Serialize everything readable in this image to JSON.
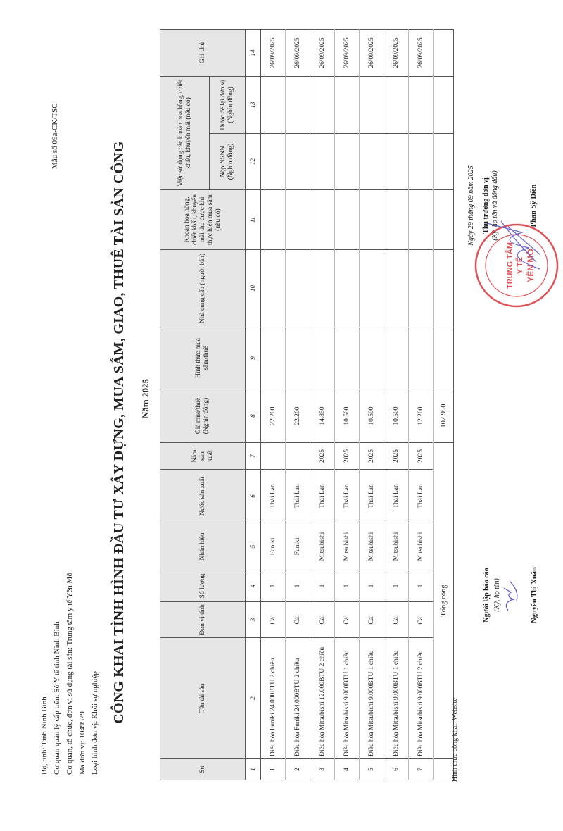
{
  "header": {
    "form_no": "Mẫu số 09a-CK/TSC",
    "info_lines": [
      "Bộ, tỉnh: Tỉnh Ninh Bình",
      "Cơ quan quản lý cấp trên: Sở Y tế tỉnh Ninh Bình",
      "Cơ quan, tổ chức, đơn vị sử dụng tài sản: Trung tâm y tế Yên Mô",
      "Mã đơn vị: 1049529",
      "Loại hình đơn vị: Khối sự nghiệp"
    ],
    "title": "CÔNG KHAI TÌNH HÌNH ĐẦU TƯ XÂY DỰNG, MUA SẮM, GIAO, THUÊ TÀI SẢN CÔNG",
    "year": "Năm 2025"
  },
  "table": {
    "headers": {
      "stt": "Stt",
      "name": "Tên tài sản",
      "unit": "Đơn vị tính",
      "qty": "Số lượng",
      "brand": "Nhãn hiệu",
      "country": "Nước sản xuất",
      "year": "Năm sản xuất",
      "price": "Giá mua/thuê (Nghìn đồng)",
      "method": "Hình thức mua sắm/thuê",
      "supplier": "Nhà cung cấp (người bán)",
      "commission": "Khoản hoa hồng, chiết khấu, khuyến mãi thu được khi thực hiện mua sắm (nếu có)",
      "usage": "Việc sử dụng các khoản hoa hồng, chiết khấu, khuyến mãi (nếu có)",
      "usage_budget": "Nộp NSNN (Nghìn đồng)",
      "usage_kept": "Được để lại đơn vị (Nghìn đồng)",
      "note": "Ghi chú"
    },
    "column_numbers": [
      "1",
      "2",
      "3",
      "4",
      "5",
      "6",
      "7",
      "8",
      "9",
      "10",
      "11",
      "12",
      "13",
      "14"
    ],
    "rows": [
      {
        "stt": "1",
        "name": "Điều hòa Funiki 24.000BTU 2 chiều",
        "unit": "Cái",
        "qty": "1",
        "brand": "Funiki",
        "country": "Thái Lan",
        "year": "",
        "price": "22.200",
        "method": "",
        "supplier": "",
        "commission": "",
        "budget": "",
        "kept": "",
        "note": "26/09/2025"
      },
      {
        "stt": "2",
        "name": "Điều hòa Funiki 24.000BTU 2 chiều",
        "unit": "Cái",
        "qty": "1",
        "brand": "Funiki",
        "country": "Thái Lan",
        "year": "",
        "price": "22.200",
        "method": "",
        "supplier": "",
        "commission": "",
        "budget": "",
        "kept": "",
        "note": "26/09/2025"
      },
      {
        "stt": "3",
        "name": "Điều hòa Mitsubishi 12.000BTU 2 chiều",
        "unit": "Cái",
        "qty": "1",
        "brand": "Mitsubishi",
        "country": "Thái Lan",
        "year": "2025",
        "price": "14.850",
        "method": "",
        "supplier": "",
        "commission": "",
        "budget": "",
        "kept": "",
        "note": "26/09/2025"
      },
      {
        "stt": "4",
        "name": "Điều hòa Mitsubishi 9.000BTU 1 chiều",
        "unit": "Cái",
        "qty": "1",
        "brand": "Mitsubishi",
        "country": "Thái Lan",
        "year": "2025",
        "price": "10.500",
        "method": "",
        "supplier": "",
        "commission": "",
        "budget": "",
        "kept": "",
        "note": "26/09/2025"
      },
      {
        "stt": "5",
        "name": "Điều hòa Mitsubishi 9.000BTU 1 chiều",
        "unit": "Cái",
        "qty": "1",
        "brand": "Mitsubishi",
        "country": "Thái Lan",
        "year": "2025",
        "price": "10.500",
        "method": "",
        "supplier": "",
        "commission": "",
        "budget": "",
        "kept": "",
        "note": "26/09/2025"
      },
      {
        "stt": "6",
        "name": "Điều hòa Mitsubishi 9.000BTU 1 chiều",
        "unit": "Cái",
        "qty": "1",
        "brand": "Mitsubishi",
        "country": "Thái Lan",
        "year": "2025",
        "price": "10.500",
        "method": "",
        "supplier": "",
        "commission": "",
        "budget": "",
        "kept": "",
        "note": "26/09/2025"
      },
      {
        "stt": "7",
        "name": "Điều hòa Mitsubishi 9.000BTU 2 chiều",
        "unit": "Cái",
        "qty": "1",
        "brand": "Mitsubishi",
        "country": "Thái Lan",
        "year": "2025",
        "price": "12.200",
        "method": "",
        "supplier": "",
        "commission": "",
        "budget": "",
        "kept": "",
        "note": "26/09/2025"
      }
    ],
    "total_label": "Tổng cộng",
    "total_price": "102.950"
  },
  "footer": {
    "disclosure": "Hình thức công khai: Website",
    "preparer": {
      "title": "Người lập báo cáo",
      "hint": "(Ký, họ tên)",
      "name": "Nguyễn Thị Xuân"
    },
    "head": {
      "date": "Ngày 29 tháng 09 năm 2025",
      "title": "Thủ trưởng đơn vị",
      "hint": "(Ký, họ tên và đóng dấu)",
      "name": "Phan Sỹ Điền"
    },
    "stamp_text": "TRUNG TÂM Y TẾ YÊN MÔ",
    "stamp_color": "#d9343a",
    "signature_color": "#5a55c8"
  }
}
